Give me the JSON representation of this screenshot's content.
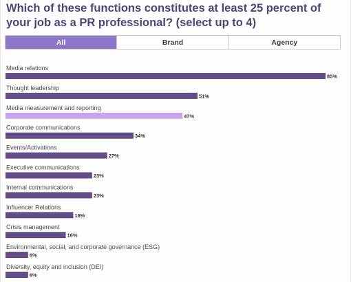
{
  "title": "Which of these functions constitutes at least 25 percent of your job as a PR professional? (select up to 4)",
  "tabs": [
    {
      "label": "All",
      "active": true
    },
    {
      "label": "Brand",
      "active": false
    },
    {
      "label": "Agency",
      "active": false
    }
  ],
  "colors": {
    "bar": "#624e86",
    "bar_highlight": "#c9a6ec",
    "tab_active": "#8d77c9",
    "title": "#4e4577"
  },
  "chart_data": {
    "type": "bar",
    "orientation": "horizontal",
    "title": "Which of these functions constitutes at least 25 percent of your job as a PR professional? (select up to 4)",
    "categories": [
      "Media relations",
      "Thought leadership",
      "Media measurement and reporting",
      "Corporate communications",
      "Events/Activations",
      "Executive communications",
      "Internal communications",
      "Influencer Relations",
      "Crisis management",
      "Environmental, social, and corporate governance (ESG)",
      "Diversity, equity and  inclusion (DEI)"
    ],
    "values": [
      85,
      51,
      47,
      34,
      27,
      23,
      23,
      18,
      16,
      6,
      6
    ],
    "value_labels": [
      "85%",
      "51%",
      "47%",
      "34%",
      "27%",
      "23%",
      "23%",
      "18%",
      "16%",
      "6%",
      "6%"
    ],
    "highlighted_index": 2,
    "xlim": [
      0,
      85
    ],
    "grid": false,
    "legend": "none"
  }
}
